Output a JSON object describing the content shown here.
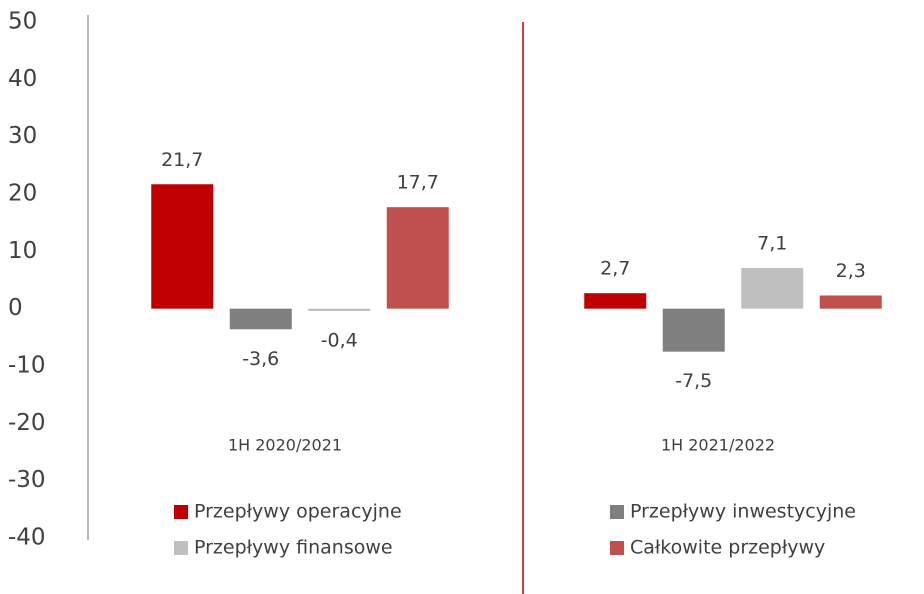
{
  "chart_data": {
    "type": "bar",
    "categories": [
      "1H 2020/2021",
      "1H 2021/2022"
    ],
    "series": [
      {
        "name": "Przepływy operacyjne",
        "color": "#c00000",
        "values": [
          21.7,
          2.7
        ],
        "value_labels": [
          "21,7",
          "2,7"
        ]
      },
      {
        "name": "Przepływy inwestycyjne",
        "color": "#7f7f7f",
        "values": [
          -3.6,
          -7.5
        ],
        "value_labels": [
          "-3,6",
          "-7,5"
        ]
      },
      {
        "name": "Przepływy finansowe",
        "color": "#bfbfbf",
        "values": [
          -0.4,
          7.1
        ],
        "value_labels": [
          "-0,4",
          "7,1"
        ]
      },
      {
        "name": "Całkowite przepływy",
        "color": "#c0504d",
        "values": [
          17.7,
          2.3
        ],
        "value_labels": [
          "17,7",
          "2,3"
        ]
      }
    ],
    "ylim": [
      -40,
      50
    ],
    "yticks": [
      -40,
      -30,
      -20,
      -10,
      0,
      10,
      20,
      30,
      40,
      50
    ],
    "legend": "bottom",
    "grid": false
  }
}
